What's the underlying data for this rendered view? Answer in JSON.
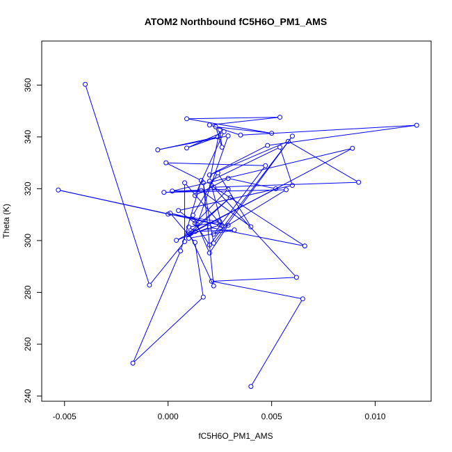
{
  "chart_data": {
    "type": "scatter",
    "connected": true,
    "title": "ATOM2 Northbound fC5H6O_PM1_AMS",
    "xlabel": "fC5H6O_PM1_AMS",
    "ylabel": "Theta (K)",
    "xlim": [
      -0.0061,
      0.0127
    ],
    "ylim": [
      238.0,
      377.0
    ],
    "xticks": [
      -0.005,
      0.0,
      0.005,
      0.01
    ],
    "xtick_labels": [
      "-0.005",
      "0.000",
      "0.005",
      "0.010"
    ],
    "yticks": [
      240,
      260,
      280,
      300,
      320,
      340,
      360
    ],
    "ytick_labels": [
      "240",
      "260",
      "280",
      "300",
      "320",
      "340",
      "360"
    ],
    "color": "#0000ff",
    "marker": "open-circle",
    "series": [
      {
        "points": [
          {
            "x": 0.004,
            "y": 243.7
          },
          {
            "x": 0.0065,
            "y": 277.5
          },
          {
            "x": 0.0021,
            "y": 284.3
          },
          {
            "x": 0.0062,
            "y": 285.8
          },
          {
            "x": 0.0022,
            "y": 320.6
          },
          {
            "x": 0.0092,
            "y": 322.5
          },
          {
            "x": 0.0058,
            "y": 338.3
          },
          {
            "x": 0.002,
            "y": 325.3
          },
          {
            "x": 0.0048,
            "y": 336.7
          },
          {
            "x": 0.012,
            "y": 344.5
          },
          {
            "x": 0.0035,
            "y": 340.7
          },
          {
            "x": 0.002,
            "y": 344.6
          },
          {
            "x": 0.0054,
            "y": 347.6
          },
          {
            "x": 0.0009,
            "y": 347.0
          },
          {
            "x": 0.005,
            "y": 341.4
          },
          {
            "x": 0.0023,
            "y": 343.9
          },
          {
            "x": 0.0026,
            "y": 336.0
          },
          {
            "x": 0.0025,
            "y": 342.8
          },
          {
            "x": 0.002,
            "y": 322.9
          },
          {
            "x": 0.0054,
            "y": 336.0
          },
          {
            "x": 0.006,
            "y": 321.3
          },
          {
            "x": 0.0005,
            "y": 311.6
          },
          {
            "x": 0.0014,
            "y": 306.2
          },
          {
            "x": 0.0029,
            "y": 340.4
          },
          {
            "x": -0.0005,
            "y": 335.0
          },
          {
            "x": 0.0024,
            "y": 340.0
          },
          {
            "x": 0.0009,
            "y": 335.7
          },
          {
            "x": 0.0027,
            "y": 342.0
          },
          {
            "x": 0.0013,
            "y": 317.4
          },
          {
            "x": 0.0029,
            "y": 324.0
          },
          {
            "x": 0.0052,
            "y": 320.0
          },
          {
            "x": 0.0004,
            "y": 300.1
          },
          {
            "x": 0.002,
            "y": 305.1
          },
          {
            "x": 0.0066,
            "y": 297.9
          },
          {
            "x": 0.0021,
            "y": 321.2
          },
          {
            "x": 0.0026,
            "y": 305.8
          },
          {
            "x": 0.0001,
            "y": 310.6
          },
          {
            "x": 0.0013,
            "y": 299.3
          },
          {
            "x": 0.0017,
            "y": 278.2
          },
          {
            "x": -0.0017,
            "y": 252.7
          },
          {
            "x": 0.0006,
            "y": 296.0
          },
          {
            "x": 0.0016,
            "y": 323.2
          },
          {
            "x": -0.0001,
            "y": 330.0
          },
          {
            "x": 0.0047,
            "y": 328.9
          },
          {
            "x": 0.0022,
            "y": 302.5
          },
          {
            "x": 0.0057,
            "y": 319.6
          },
          {
            "x": -0.0002,
            "y": 318.6
          },
          {
            "x": 0.0016,
            "y": 319.3
          },
          {
            "x": 0.004,
            "y": 305.3
          },
          {
            "x": 0.0024,
            "y": 326.1
          },
          {
            "x": 0.0012,
            "y": 309.8
          },
          {
            "x": 0.002,
            "y": 295.2
          },
          {
            "x": 0.0029,
            "y": 305.9
          },
          {
            "x": 0.0025,
            "y": 306.0
          },
          {
            "x": 0.001,
            "y": 302.3
          },
          {
            "x": 0.0089,
            "y": 335.6
          },
          {
            "x": 0.0002,
            "y": 319.1
          },
          {
            "x": 0.0029,
            "y": 319.8
          },
          {
            "x": 0.0013,
            "y": 306.7
          },
          {
            "x": 0.002,
            "y": 298.3
          },
          {
            "x": 0.006,
            "y": 340.3
          },
          {
            "x": 0.0022,
            "y": 299.0
          },
          {
            "x": 0.0017,
            "y": 322.3
          },
          {
            "x": 0.0022,
            "y": 282.5
          },
          {
            "x": 0.001,
            "y": 303.0
          },
          {
            "x": 0.003,
            "y": 316.6
          },
          {
            "x": 0.0011,
            "y": 302.8
          },
          {
            "x": 0.001,
            "y": 300.9
          },
          {
            "x": 0.0032,
            "y": 304.1
          },
          {
            "x": 0.0013,
            "y": 303.5
          },
          {
            "x": 0.001,
            "y": 305.2
          },
          {
            "x": 0.0025,
            "y": 307.3
          },
          {
            "x": 0.0,
            "y": 310.2
          },
          {
            "x": -0.0053,
            "y": 319.5
          },
          {
            "x": 0.0026,
            "y": 305.8
          },
          {
            "x": 0.0008,
            "y": 322.3
          },
          {
            "x": 0.0008,
            "y": 299.6
          },
          {
            "x": -0.0009,
            "y": 282.8
          },
          {
            "x": -0.004,
            "y": 360.3
          }
        ]
      }
    ]
  }
}
